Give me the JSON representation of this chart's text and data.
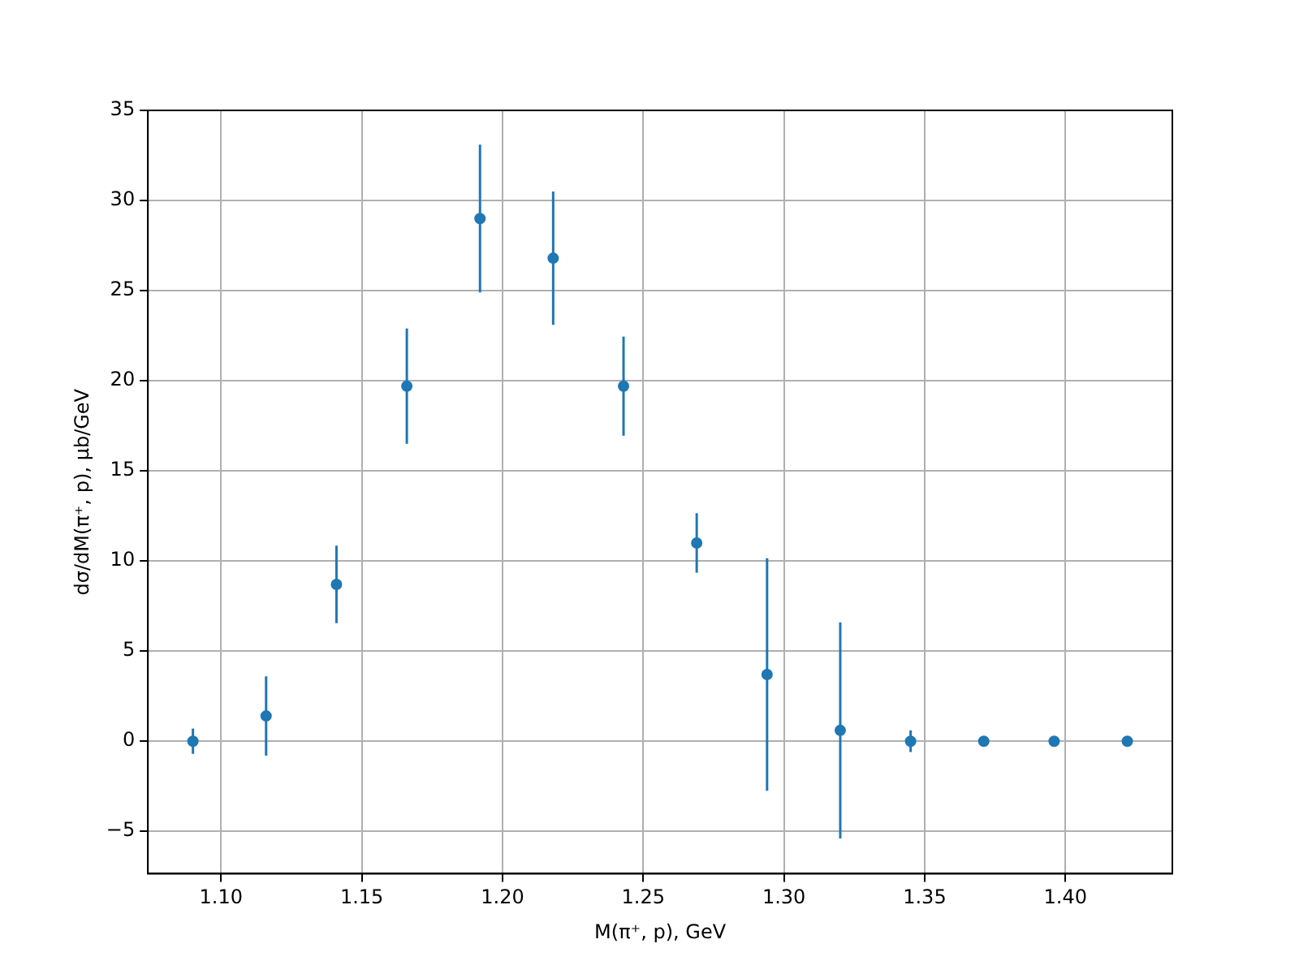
{
  "chart_data": {
    "type": "scatter",
    "xlabel": "M(π⁺, p), GeV",
    "ylabel": "dσ/dM(π⁺, p), μb/GeV",
    "x": [
      1.09,
      1.116,
      1.141,
      1.166,
      1.192,
      1.218,
      1.243,
      1.269,
      1.294,
      1.32,
      1.345,
      1.371,
      1.396,
      1.422
    ],
    "series": [
      {
        "color": "#1f77b4",
        "values": [
          0,
          1.4,
          8.7,
          19.7,
          29.0,
          26.8,
          19.7,
          11.0,
          3.7,
          0.6,
          0,
          0,
          0,
          0
        ],
        "errors": [
          0.7,
          2.2,
          2.15,
          3.2,
          4.1,
          3.7,
          2.75,
          1.65,
          6.45,
          6.0,
          0.6,
          null,
          null,
          null
        ]
      }
    ],
    "xlim": [
      1.074,
      1.438
    ],
    "xticks": [
      {
        "value": 1.1,
        "label": "1.10"
      },
      {
        "value": 1.15,
        "label": "1.15"
      },
      {
        "value": 1.2,
        "label": "1.20"
      },
      {
        "value": 1.25,
        "label": "1.25"
      },
      {
        "value": 1.3,
        "label": "1.30"
      },
      {
        "value": 1.35,
        "label": "1.35"
      },
      {
        "value": 1.4,
        "label": "1.40"
      }
    ],
    "ylim": [
      -7.35,
      35
    ],
    "yticks": [
      {
        "value": -5,
        "label": "−5"
      },
      0,
      5,
      10,
      15,
      20,
      25,
      30,
      35
    ],
    "grid": true,
    "marker": "circle",
    "legend": false
  }
}
